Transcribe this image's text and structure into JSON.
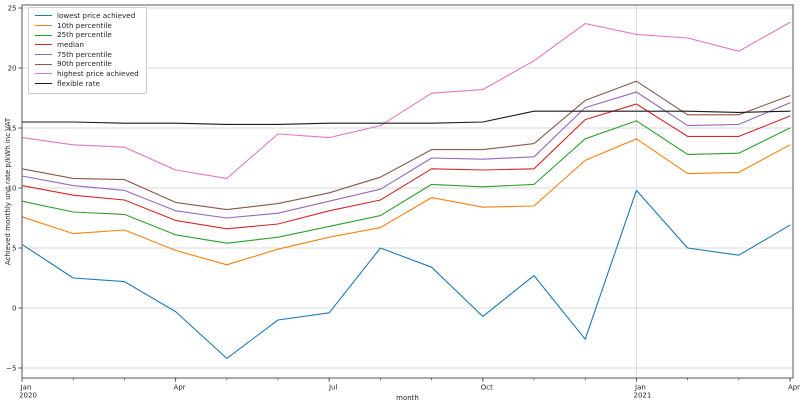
{
  "chart_data": {
    "type": "line",
    "title": "",
    "xlabel": "month",
    "ylabel": "Achieved monthly unit rate p/kWh inc VAT",
    "ylim": [
      -6,
      25.4
    ],
    "yticks": [
      -5,
      0,
      5,
      10,
      15,
      20,
      25
    ],
    "grid": {
      "horizontal": true,
      "vertical_at_indices": [
        0,
        12
      ]
    },
    "legend_position": "upper-left",
    "x_categories": [
      "Jan 2020",
      "Feb 2020",
      "Mar 2020",
      "Apr 2020",
      "May 2020",
      "Jun 2020",
      "Jul 2020",
      "Aug 2020",
      "Sep 2020",
      "Oct 2020",
      "Nov 2020",
      "Dec 2020",
      "Jan 2021",
      "Feb 2021",
      "Mar 2021",
      "Apr 2021"
    ],
    "x_ticks": [
      {
        "i": 0,
        "label": "Jan",
        "sub": "2020"
      },
      {
        "i": 3,
        "label": "Apr"
      },
      {
        "i": 6,
        "label": "Jul"
      },
      {
        "i": 9,
        "label": "Oct"
      },
      {
        "i": 12,
        "label": "Jan",
        "sub": "2021"
      },
      {
        "i": 15,
        "label": "Apr"
      }
    ],
    "series": [
      {
        "name": "lowest price achieved",
        "color": "#1f77b4",
        "values": [
          5.3,
          2.5,
          2.2,
          -0.3,
          -4.2,
          -1.0,
          -0.4,
          5.0,
          3.4,
          -0.7,
          2.7,
          -2.6,
          9.8,
          5.0,
          4.4,
          6.9
        ]
      },
      {
        "name": "10th percentile",
        "color": "#ff7f0e",
        "values": [
          7.6,
          6.2,
          6.5,
          4.8,
          3.6,
          4.9,
          5.9,
          6.7,
          9.2,
          8.4,
          8.5,
          12.3,
          14.1,
          11.2,
          11.3,
          13.6
        ]
      },
      {
        "name": "25th percentile",
        "color": "#2ca02c",
        "values": [
          8.9,
          8.0,
          7.8,
          6.1,
          5.4,
          5.9,
          6.8,
          7.7,
          10.3,
          10.1,
          10.3,
          14.1,
          15.6,
          12.8,
          12.9,
          15.0
        ]
      },
      {
        "name": "median",
        "color": "#d62728",
        "values": [
          10.2,
          9.4,
          9.0,
          7.3,
          6.6,
          7.0,
          8.1,
          9.0,
          11.6,
          11.5,
          11.6,
          15.7,
          17.0,
          14.3,
          14.3,
          16.0
        ]
      },
      {
        "name": "75th percentile",
        "color": "#9467bd",
        "values": [
          11.0,
          10.2,
          9.8,
          8.1,
          7.5,
          7.9,
          8.9,
          9.9,
          12.5,
          12.4,
          12.6,
          16.7,
          18.0,
          15.2,
          15.3,
          17.1
        ]
      },
      {
        "name": "90th percentile",
        "color": "#8c564b",
        "values": [
          11.6,
          10.8,
          10.7,
          8.8,
          8.2,
          8.7,
          9.6,
          10.9,
          13.2,
          13.2,
          13.7,
          17.3,
          18.9,
          16.1,
          16.1,
          17.7
        ]
      },
      {
        "name": "highest price achieved",
        "color": "#e377c2",
        "values": [
          14.2,
          13.6,
          13.4,
          11.5,
          10.8,
          14.5,
          14.2,
          15.2,
          17.9,
          18.2,
          20.6,
          23.7,
          22.8,
          22.5,
          21.4,
          23.8
        ]
      },
      {
        "name": "flexible rate",
        "color": "#1a1a1a",
        "values": [
          15.5,
          15.5,
          15.4,
          15.4,
          15.3,
          15.3,
          15.4,
          15.4,
          15.4,
          15.5,
          16.4,
          16.4,
          16.4,
          16.4,
          16.3,
          16.4
        ]
      }
    ],
    "axis_colors": {
      "spine": "#555555",
      "grid": "#d9d9d9",
      "tick_text": "#262626"
    }
  }
}
